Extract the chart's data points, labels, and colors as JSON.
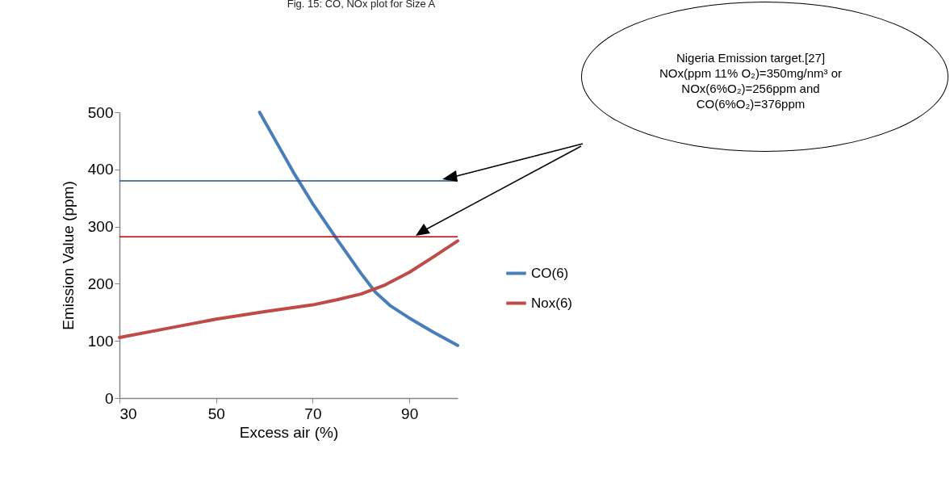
{
  "chart_data": {
    "type": "line",
    "title": "Fig. 15: CO, NOx plot for Size A",
    "xlabel": "Excess air (%)",
    "ylabel": "Emission Value (ppm)",
    "xlim": [
      30,
      100
    ],
    "xticks": [
      30,
      50,
      70,
      90
    ],
    "ylim": [
      0,
      500
    ],
    "yticks": [
      0,
      100,
      200,
      300,
      400,
      500
    ],
    "grid": false,
    "legend": "right",
    "marker": "none",
    "line_style": "solid",
    "series": [
      {
        "name": "CO(6)",
        "color": "#4a7ebb",
        "x": [
          59,
          62,
          66,
          70,
          75,
          80,
          83,
          86,
          90,
          95,
          100
        ],
        "values": [
          500,
          455,
          395,
          340,
          278,
          218,
          185,
          162,
          140,
          115,
          92
        ]
      },
      {
        "name": "Nox(6)",
        "color": "#be4b48",
        "x": [
          30,
          40,
          50,
          60,
          70,
          75,
          80,
          85,
          90,
          95,
          100
        ],
        "values": [
          106,
          122,
          138,
          151,
          163,
          172,
          182,
          198,
          220,
          247,
          275
        ]
      }
    ],
    "ref_lines": [
      {
        "axis": "y",
        "value": 380,
        "color": "#254f8e"
      },
      {
        "axis": "y",
        "value": 282,
        "color": "#c00000"
      }
    ],
    "annotations": [
      "Nigeria Emission target.[27] NOx(ppm 11% O₂)=350mg/nm³ or NOx(6%O₂)=256ppm and CO(6%O₂)=376ppm"
    ]
  }
}
